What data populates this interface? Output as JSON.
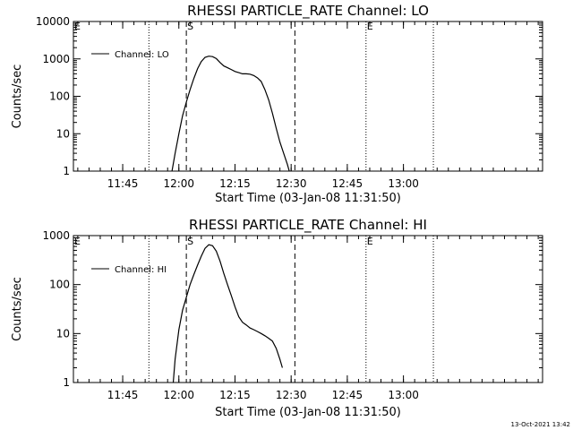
{
  "chart_data": [
    {
      "type": "line",
      "title": "RHESSI PARTICLE_RATE Channel: LO",
      "xlabel": "Start Time (03-Jan-08 11:31:50)",
      "ylabel": "Counts/sec",
      "y_scale": "log",
      "ylim": [
        1,
        10000
      ],
      "xlim": [
        "11:31:50",
        "13:37:10"
      ],
      "x_ticks": [
        "11:45",
        "12:00",
        "12:15",
        "12:30",
        "12:45",
        "13:00"
      ],
      "y_ticks": [
        "1",
        "10",
        "100",
        "1000",
        "10000"
      ],
      "grid": false,
      "legend_position": "top-left",
      "series": [
        {
          "name": "Channel: LO",
          "x": [
            "11:58:10",
            "11:59:00",
            "12:00:00",
            "12:01:00",
            "12:02:00",
            "12:03:00",
            "12:04:00",
            "12:05:00",
            "12:06:00",
            "12:07:00",
            "12:08:00",
            "12:09:00",
            "12:10:00",
            "12:11:00",
            "12:12:00",
            "12:13:00",
            "12:14:00",
            "12:15:00",
            "12:16:00",
            "12:17:00",
            "12:18:00",
            "12:19:00",
            "12:20:00",
            "12:21:00",
            "12:22:00",
            "12:23:00",
            "12:24:00",
            "12:25:00",
            "12:26:00",
            "12:27:00",
            "12:28:00",
            "12:29:00",
            "12:29:30"
          ],
          "values": [
            1,
            3,
            10,
            30,
            70,
            150,
            300,
            550,
            850,
            1100,
            1180,
            1150,
            1020,
            800,
            650,
            580,
            520,
            460,
            430,
            400,
            400,
            390,
            360,
            310,
            250,
            150,
            80,
            35,
            14,
            6,
            3,
            1.5,
            1
          ]
        }
      ],
      "vertical_markers": [
        {
          "label": "E",
          "time": "11:31:50",
          "style": "dotted"
        },
        {
          "label": "",
          "time": "11:52:00",
          "style": "dotted"
        },
        {
          "label": "S",
          "time": "12:02:00",
          "style": "dashed"
        },
        {
          "label": "",
          "time": "12:31:00",
          "style": "dashed"
        },
        {
          "label": "E",
          "time": "12:50:00",
          "style": "dotted"
        },
        {
          "label": "",
          "time": "13:08:00",
          "style": "dotted"
        }
      ]
    },
    {
      "type": "line",
      "title": "RHESSI PARTICLE_RATE Channel: HI",
      "xlabel": "Start Time (03-Jan-08 11:31:50)",
      "ylabel": "Counts/sec",
      "y_scale": "log",
      "ylim": [
        1,
        1000
      ],
      "xlim": [
        "11:31:50",
        "13:37:10"
      ],
      "x_ticks": [
        "11:45",
        "12:00",
        "12:15",
        "12:30",
        "12:45",
        "13:00"
      ],
      "y_ticks": [
        "1",
        "10",
        "100",
        "1000"
      ],
      "grid": false,
      "legend_position": "top-left",
      "series": [
        {
          "name": "Channel: HI",
          "x": [
            "11:58:30",
            "11:59:00",
            "12:00:00",
            "12:01:00",
            "12:02:00",
            "12:03:00",
            "12:04:00",
            "12:05:00",
            "12:06:00",
            "12:07:00",
            "12:08:00",
            "12:09:00",
            "12:10:00",
            "12:11:00",
            "12:12:00",
            "12:13:00",
            "12:14:00",
            "12:15:00",
            "12:16:00",
            "12:17:00",
            "12:18:00",
            "12:19:00",
            "12:20:00",
            "12:21:00",
            "12:22:00",
            "12:23:00",
            "12:24:00",
            "12:25:00",
            "12:26:00",
            "12:27:00",
            "12:27:40"
          ],
          "values": [
            1,
            3,
            12,
            30,
            55,
            100,
            160,
            250,
            380,
            550,
            650,
            620,
            480,
            300,
            170,
            100,
            60,
            35,
            22,
            17,
            15,
            13,
            12,
            11,
            10,
            9,
            8,
            7,
            5,
            3,
            2
          ]
        }
      ],
      "vertical_markers": [
        {
          "label": "E",
          "time": "11:31:50",
          "style": "dotted"
        },
        {
          "label": "",
          "time": "11:52:00",
          "style": "dotted"
        },
        {
          "label": "S",
          "time": "12:02:00",
          "style": "dashed"
        },
        {
          "label": "",
          "time": "12:31:00",
          "style": "dashed"
        },
        {
          "label": "E",
          "time": "12:50:00",
          "style": "dotted"
        },
        {
          "label": "",
          "time": "13:08:00",
          "style": "dotted"
        }
      ]
    }
  ],
  "footer": {
    "timestamp": "13-Oct-2021 13:42"
  }
}
